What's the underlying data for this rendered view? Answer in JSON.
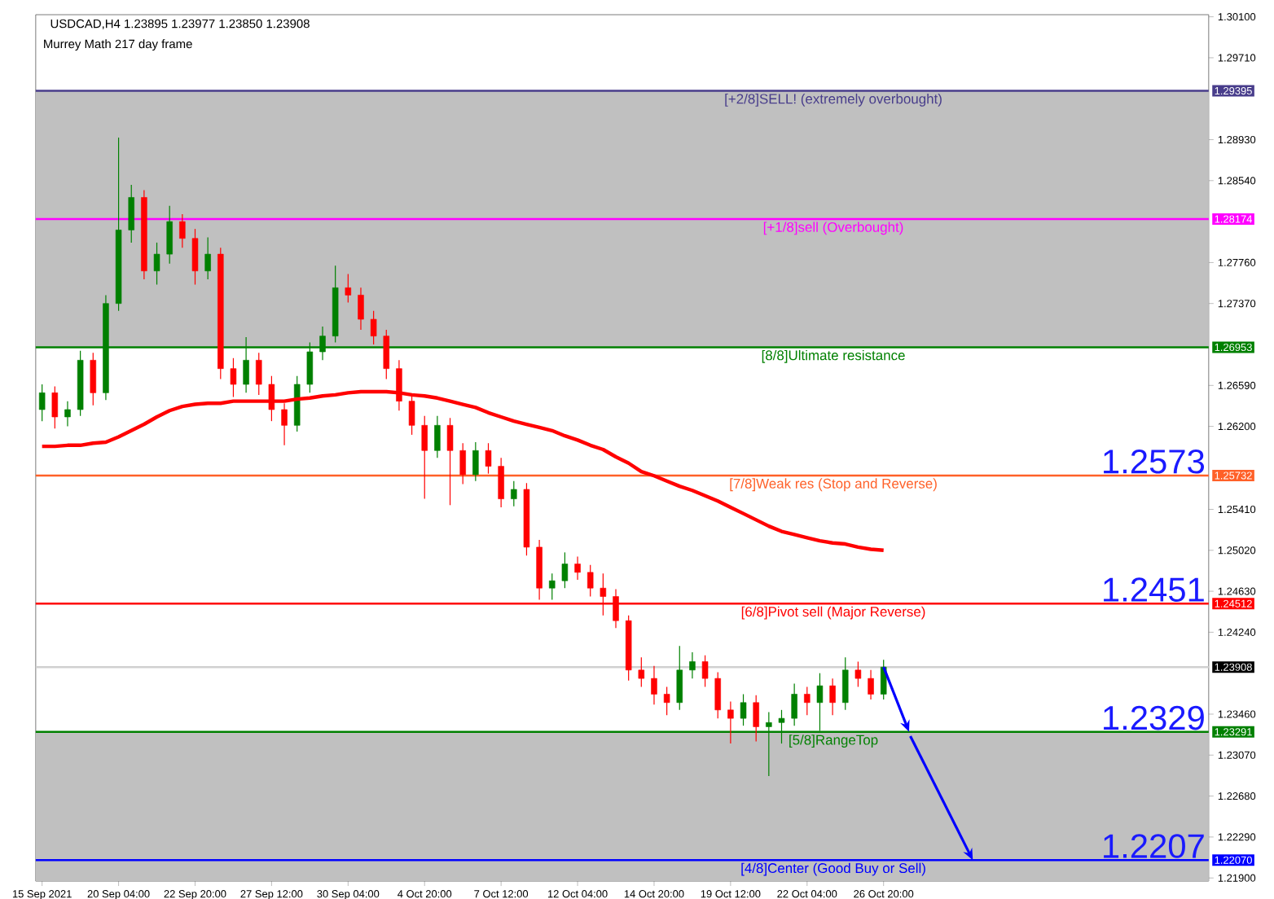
{
  "chart_data": {
    "type": "candlestick",
    "title": "USDCAD,H4  1.23895 1.23977 1.23850 1.23908",
    "subtitle": "Murrey Math 217 day frame",
    "categories": [
      "15 Sep 2021",
      null,
      null,
      null,
      null,
      null,
      "20 Sep 04:00",
      null,
      null,
      null,
      null,
      null,
      "22 Sep 20:00",
      null,
      null,
      null,
      null,
      null,
      "27 Sep 12:00",
      null,
      null,
      null,
      null,
      null,
      "30 Sep 04:00",
      null,
      null,
      null,
      null,
      null,
      "4 Oct 20:00",
      null,
      null,
      null,
      null,
      null,
      "7 Oct 12:00",
      null,
      null,
      null,
      null,
      null,
      "12 Oct 04:00",
      null,
      null,
      null,
      null,
      null,
      "14 Oct 20:00",
      null,
      null,
      null,
      null,
      null,
      "19 Oct 12:00",
      null,
      null,
      null,
      null,
      null,
      "22 Oct 04:00",
      null,
      null,
      null,
      null,
      null,
      "26 Oct 20:00",
      null,
      null,
      null,
      null,
      null,
      null,
      null,
      null,
      null,
      null,
      null,
      null,
      null,
      null,
      null,
      null,
      null,
      null,
      null,
      null,
      null,
      null,
      null,
      null,
      null
    ],
    "ohlc": [
      [
        1.2636,
        1.266,
        1.2625,
        1.2652
      ],
      [
        1.2652,
        1.2658,
        1.2618,
        1.2629
      ],
      [
        1.2629,
        1.2644,
        1.262,
        1.2636
      ],
      [
        1.2636,
        1.2692,
        1.263,
        1.2683
      ],
      [
        1.2683,
        1.269,
        1.264,
        1.2652
      ],
      [
        1.2652,
        1.2745,
        1.2645,
        1.2737
      ],
      [
        1.2737,
        1.2895,
        1.273,
        1.2807
      ],
      [
        1.2807,
        1.285,
        1.2795,
        1.2838
      ],
      [
        1.2838,
        1.2845,
        1.276,
        1.2768
      ],
      [
        1.2768,
        1.2795,
        1.2755,
        1.2784
      ],
      [
        1.2784,
        1.283,
        1.2775,
        1.2815
      ],
      [
        1.2815,
        1.2822,
        1.279,
        1.2799
      ],
      [
        1.2799,
        1.2808,
        1.2755,
        1.2768
      ],
      [
        1.2768,
        1.28,
        1.276,
        1.2784
      ],
      [
        1.2784,
        1.279,
        1.2665,
        1.2675
      ],
      [
        1.2675,
        1.2685,
        1.2648,
        1.266
      ],
      [
        1.266,
        1.2705,
        1.2652,
        1.2683
      ],
      [
        1.2683,
        1.269,
        1.265,
        1.266
      ],
      [
        1.266,
        1.2668,
        1.2625,
        1.2636
      ],
      [
        1.2636,
        1.2642,
        1.2602,
        1.2621
      ],
      [
        1.2621,
        1.2668,
        1.2615,
        1.266
      ],
      [
        1.266,
        1.27,
        1.2652,
        1.2691
      ],
      [
        1.2691,
        1.2715,
        1.2683,
        1.2706
      ],
      [
        1.2706,
        1.2773,
        1.27,
        1.2752
      ],
      [
        1.2752,
        1.2765,
        1.2738,
        1.2745
      ],
      [
        1.2745,
        1.2752,
        1.2712,
        1.2722
      ],
      [
        1.2722,
        1.273,
        1.2698,
        1.2706
      ],
      [
        1.2706,
        1.2712,
        1.2665,
        1.2675
      ],
      [
        1.2675,
        1.2683,
        1.2635,
        1.2644
      ],
      [
        1.2644,
        1.265,
        1.2612,
        1.2621
      ],
      [
        1.2621,
        1.263,
        1.2551,
        1.2597
      ],
      [
        1.2597,
        1.263,
        1.259,
        1.2621
      ],
      [
        1.2621,
        1.2628,
        1.2545,
        1.2597
      ],
      [
        1.2597,
        1.2604,
        1.2565,
        1.2574
      ],
      [
        1.2574,
        1.2605,
        1.2568,
        1.2597
      ],
      [
        1.2597,
        1.2604,
        1.2575,
        1.2582
      ],
      [
        1.2582,
        1.259,
        1.2543,
        1.2551
      ],
      [
        1.2551,
        1.2568,
        1.2544,
        1.256
      ],
      [
        1.256,
        1.2566,
        1.2497,
        1.2505
      ],
      [
        1.2505,
        1.2512,
        1.2455,
        1.2466
      ],
      [
        1.2466,
        1.248,
        1.2455,
        1.2473
      ],
      [
        1.2473,
        1.25,
        1.2466,
        1.2489
      ],
      [
        1.2489,
        1.2496,
        1.2474,
        1.2481
      ],
      [
        1.2481,
        1.2488,
        1.2458,
        1.2466
      ],
      [
        1.2466,
        1.248,
        1.244,
        1.2458
      ],
      [
        1.2458,
        1.2465,
        1.2428,
        1.2435
      ],
      [
        1.2435,
        1.244,
        1.2378,
        1.2388
      ],
      [
        1.2388,
        1.24,
        1.2372,
        1.238
      ],
      [
        1.238,
        1.2392,
        1.2355,
        1.2365
      ],
      [
        1.2365,
        1.2372,
        1.2345,
        1.2357
      ],
      [
        1.2357,
        1.2411,
        1.235,
        1.2388
      ],
      [
        1.2388,
        1.2405,
        1.238,
        1.2396
      ],
      [
        1.2396,
        1.2402,
        1.2372,
        1.238
      ],
      [
        1.238,
        1.2386,
        1.2342,
        1.235
      ],
      [
        1.235,
        1.2358,
        1.2318,
        1.2342
      ],
      [
        1.2342,
        1.2365,
        1.2335,
        1.2357
      ],
      [
        1.2357,
        1.2364,
        1.232,
        1.2334
      ],
      [
        1.2334,
        1.2348,
        1.2287,
        1.2338
      ],
      [
        1.2338,
        1.235,
        1.2318,
        1.2342
      ],
      [
        1.2342,
        1.2375,
        1.2335,
        1.2365
      ],
      [
        1.2365,
        1.2372,
        1.2345,
        1.2357
      ],
      [
        1.2357,
        1.2385,
        1.233,
        1.2373
      ],
      [
        1.2373,
        1.238,
        1.2345,
        1.2357
      ],
      [
        1.2357,
        1.24,
        1.235,
        1.2388
      ],
      [
        1.2388,
        1.2396,
        1.2372,
        1.238
      ],
      [
        1.238,
        1.2388,
        1.236,
        1.2365
      ],
      [
        1.2365,
        1.23977,
        1.236,
        1.23908
      ],
      null,
      null,
      null,
      null,
      null,
      null,
      null,
      null,
      null,
      null,
      null,
      null,
      null,
      null,
      null,
      null,
      null,
      null,
      null,
      null,
      null,
      null,
      null,
      null,
      null
    ],
    "series": [
      {
        "type": "line",
        "color": "#ff0000",
        "values": [
          1.2601,
          1.2601,
          1.2602,
          1.2602,
          1.2604,
          1.2605,
          1.261,
          1.2616,
          1.2622,
          1.2629,
          1.2635,
          1.2639,
          1.2641,
          1.2642,
          1.2642,
          1.2644,
          1.2644,
          1.2644,
          1.2644,
          1.2644,
          1.2646,
          1.2647,
          1.2649,
          1.265,
          1.2652,
          1.2653,
          1.2653,
          1.2653,
          1.2652,
          1.265,
          1.2649,
          1.2647,
          1.2644,
          1.2641,
          1.2638,
          1.2633,
          1.2629,
          1.2625,
          1.2622,
          1.2619,
          1.2616,
          1.2611,
          1.2607,
          1.2602,
          1.2598,
          1.2591,
          1.2585,
          1.2577,
          1.2573,
          1.2568,
          1.2563,
          1.2559,
          1.2554,
          1.2549,
          1.2543,
          1.2537,
          1.2531,
          1.2525,
          1.252,
          1.2517,
          1.2514,
          1.2511,
          1.2509,
          1.2508,
          1.2505,
          1.2503,
          1.2502,
          null,
          null,
          null,
          null,
          null,
          null,
          null,
          null,
          null,
          null,
          null,
          null,
          null,
          null,
          null,
          null,
          null,
          null,
          null,
          null,
          null,
          null,
          null,
          null,
          null
        ]
      }
    ],
    "ylim": [
      1.2187,
      1.3012
    ],
    "yticks": [
      {
        "value": 1.301,
        "label": "1.30100"
      },
      {
        "value": 1.2971,
        "label": "1.29710"
      },
      {
        "value": 1.2893,
        "label": "1.28930"
      },
      {
        "value": 1.2854,
        "label": "1.28540"
      },
      {
        "value": 1.2776,
        "label": "1.27760"
      },
      {
        "value": 1.2737,
        "label": "1.27370"
      },
      {
        "value": 1.2659,
        "label": "1.26590"
      },
      {
        "value": 1.262,
        "label": "1.26200"
      },
      {
        "value": 1.2541,
        "label": "1.25410"
      },
      {
        "value": 1.2502,
        "label": "1.25020"
      },
      {
        "value": 1.2463,
        "label": "1.24630"
      },
      {
        "value": 1.2424,
        "label": "1.24240"
      },
      {
        "value": 1.2346,
        "label": "1.23460"
      },
      {
        "value": 1.2307,
        "label": "1.23070"
      },
      {
        "value": 1.2268,
        "label": "1.22680"
      },
      {
        "value": 1.2229,
        "label": "1.22290"
      },
      {
        "value": 1.219,
        "label": "1.21900"
      }
    ],
    "bands": [
      {
        "axis": "y",
        "from": 1.26953,
        "to": 1.29395,
        "color": "#c0c0c0"
      },
      {
        "axis": "y",
        "from": 1.2187,
        "to": 1.23291,
        "color": "#c0c0c0"
      }
    ],
    "ref_lines": [
      {
        "axis": "y",
        "value": 1.29395,
        "label": "[+2/8]SELL! (extremely overbought)",
        "color": "#483d8b"
      },
      {
        "axis": "y",
        "value": 1.28174,
        "label": "[+1/8]sell (Overbought)",
        "color": "#ff00ff"
      },
      {
        "axis": "y",
        "value": 1.26953,
        "label": "[8/8]Ultimate resistance",
        "color": "#008000"
      },
      {
        "axis": "y",
        "value": 1.25732,
        "label": "[7/8]Weak res (Stop and Reverse)",
        "color": "#ff6028"
      },
      {
        "axis": "y",
        "value": 1.24512,
        "label": "[6/8]Pivot sell (Major Reverse)",
        "color": "#ff0000"
      },
      {
        "axis": "y",
        "value": 1.23908,
        "color": "#d0d0d0"
      },
      {
        "axis": "y",
        "value": 1.23291,
        "label": "[5/8]RangeTop",
        "color": "#008000"
      },
      {
        "axis": "y",
        "value": 1.2207,
        "label": "[4/8]Center (Good Buy or Sell)",
        "color": "#0000ff"
      }
    ],
    "annotations": [
      "1.29395",
      "1.28174",
      "1.26953",
      "1.25732",
      "1.24512",
      "1.23908",
      "1.23291",
      "1.22070",
      "1.2573",
      "1.2451",
      "1.2329",
      "1.2207"
    ]
  }
}
